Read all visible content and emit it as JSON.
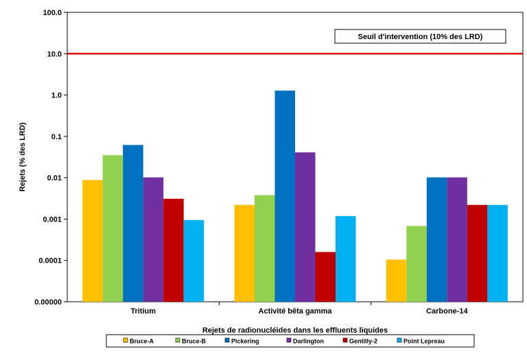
{
  "chart_data": {
    "type": "bar",
    "title": "",
    "xlabel": "Rejets de radionucléides dans les effluents liquides",
    "ylabel": "Rejets (% des LRD)",
    "y_scale": "log",
    "ylim": [
      1e-05,
      100
    ],
    "y_ticks": [
      1e-05,
      0.0001,
      0.001,
      0.01,
      0.1,
      1,
      10,
      100
    ],
    "y_tick_labels": [
      "0.00000",
      "0.0001",
      "0.001",
      "0.01",
      "0.1",
      "1.0",
      "10.0",
      "100.0"
    ],
    "grid": false,
    "legend_position": "bottom",
    "categories": [
      "Tritium",
      "Activité bêta gamma",
      "Carbone-14"
    ],
    "series": [
      {
        "name": "Bruce-A",
        "color": "#FFC000",
        "values": [
          0.0088,
          0.0022,
          0.000105
        ]
      },
      {
        "name": "Bruce-B",
        "color": "#92D050",
        "values": [
          0.035,
          0.0038,
          0.00068
        ]
      },
      {
        "name": "Pickering",
        "color": "#0070C0",
        "values": [
          0.062,
          1.28,
          0.0102
        ]
      },
      {
        "name": "Darlington",
        "color": "#7030A0",
        "values": [
          0.0102,
          0.041,
          0.0102
        ]
      },
      {
        "name": "Gentilly-2",
        "color": "#C00000",
        "values": [
          0.0031,
          0.00016,
          0.0022
        ]
      },
      {
        "name": "Point Lepreau",
        "color": "#00B0F0",
        "values": [
          0.00095,
          0.00118,
          0.0022
        ]
      }
    ],
    "reference_line": {
      "value": 10,
      "color": "#E00000"
    },
    "annotation": "Seuil d'intervention (10% des LRD)"
  }
}
